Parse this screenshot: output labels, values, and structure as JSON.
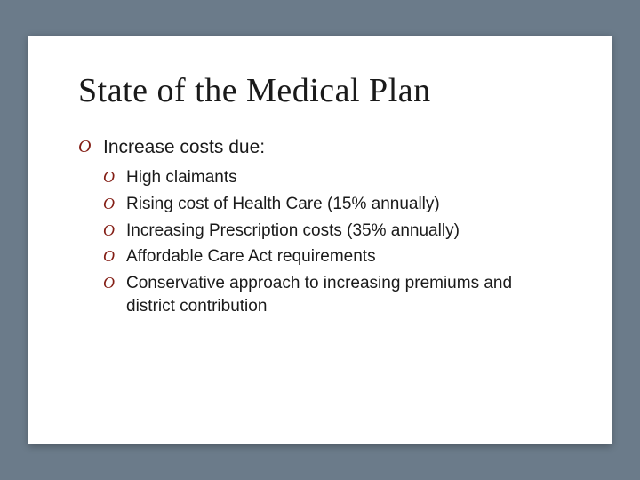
{
  "slide": {
    "title": "State of the Medical Plan",
    "background_color": "#6b7b8a",
    "card_color": "#ffffff",
    "bullet_color": "#831d14",
    "text_color": "#1a1a1a",
    "title_font": "Georgia, serif",
    "body_font": "Arial, sans-serif",
    "title_fontsize": 38,
    "top_fontsize": 21,
    "sub_fontsize": 19,
    "bullet_glyph": "O",
    "top_items": [
      {
        "text": "Increase costs due:",
        "sub_items": [
          "High claimants",
          "Rising cost of Health Care (15% annually)",
          "Increasing Prescription costs (35% annually)",
          "Affordable Care Act requirements",
          "Conservative approach to increasing premiums and district contribution"
        ]
      }
    ]
  }
}
